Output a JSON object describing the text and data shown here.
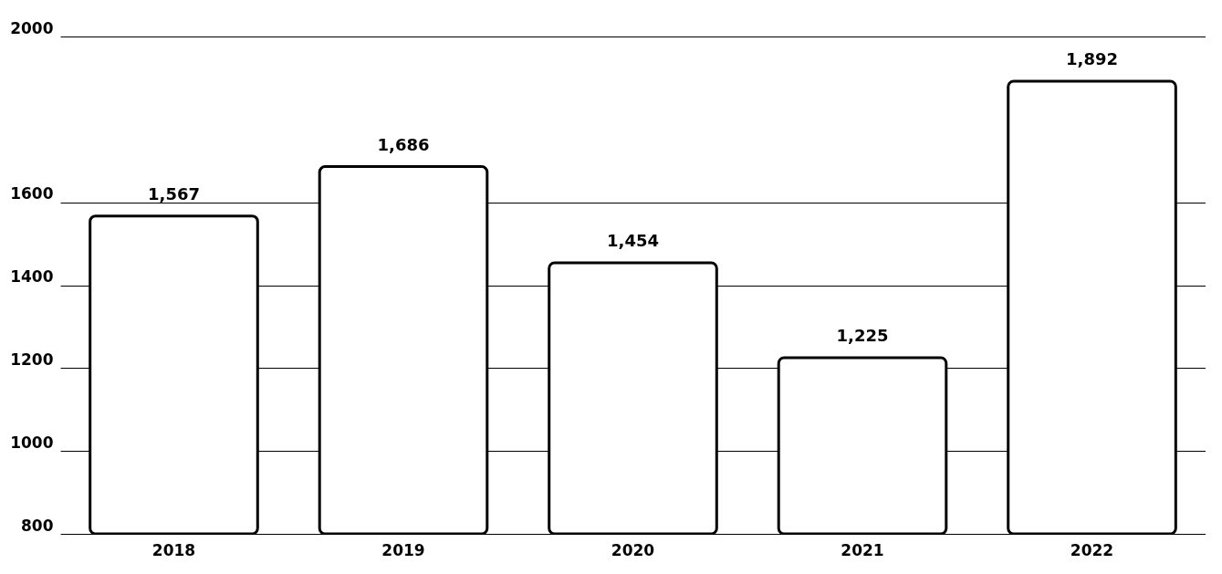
{
  "chart_data": {
    "type": "bar",
    "categories": [
      "2018",
      "2019",
      "2020",
      "2021",
      "2022"
    ],
    "values": [
      1567,
      1686,
      1454,
      1225,
      1892
    ],
    "value_labels": [
      "1,567",
      "1,686",
      "1,454",
      "1,225",
      "1,892"
    ],
    "color": "#ffffff",
    "ylim": [
      800,
      2000
    ],
    "yticks": [
      800,
      1000,
      1200,
      1400,
      1600,
      2000
    ],
    "grid": "y"
  }
}
